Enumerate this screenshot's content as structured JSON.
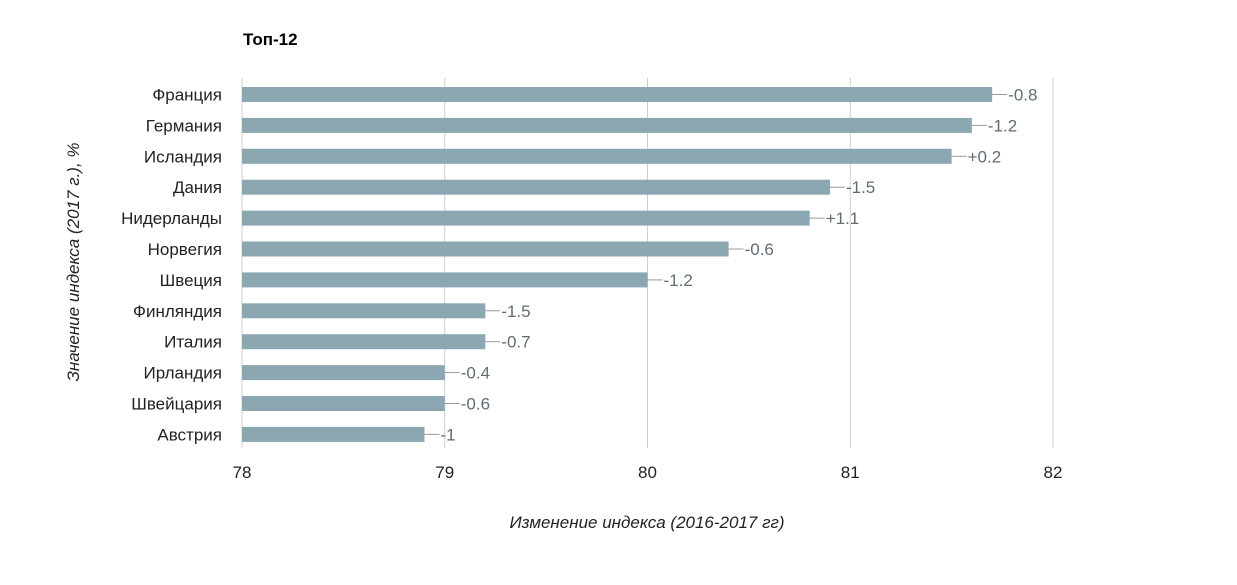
{
  "chart_data": {
    "type": "bar",
    "orientation": "horizontal",
    "title": "Топ-12",
    "xlabel": "Изменение индекса (2016-2017 гг)",
    "ylabel": "Значение индекса (2017 г.), %",
    "xlim": [
      78,
      82
    ],
    "xticks": [
      "78",
      "79",
      "80",
      "81",
      "82"
    ],
    "grid": "vertical",
    "bar_color": "#8aa7b2",
    "categories": [
      "Франция",
      "Германия",
      "Исландия",
      "Дания",
      "Нидерланды",
      "Норвегия",
      "Швеция",
      "Финляндия",
      "Италия",
      "Ирландия",
      "Швейцария",
      "Австрия"
    ],
    "values": [
      81.7,
      81.6,
      81.5,
      80.9,
      80.8,
      80.4,
      80.0,
      79.2,
      79.2,
      79.0,
      79.0,
      78.9
    ],
    "data_labels": [
      "-0.8",
      "-1.2",
      "+0.2",
      "-1.5",
      "+1.1",
      "-0.6",
      "-1.2",
      "-1.5",
      "-0.7",
      "-0.4",
      "-0.6",
      "-1"
    ]
  }
}
